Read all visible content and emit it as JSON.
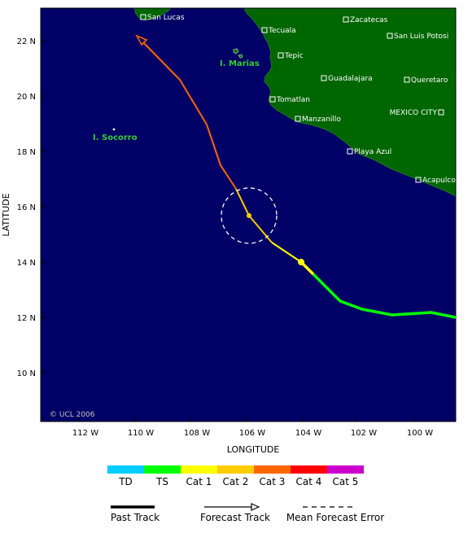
{
  "map": {
    "axes": {
      "xlabel": "LONGITUDE",
      "ylabel": "LATITUDE",
      "lon_ticks": [
        "112 W",
        "110 W",
        "108 W",
        "106 W",
        "104 W",
        "102 W",
        "100 W"
      ],
      "lat_ticks": [
        "22 N",
        "20 N",
        "18 N",
        "16 N",
        "14 N",
        "12 N",
        "10 N"
      ]
    },
    "cities": [
      {
        "name": "San Lucas"
      },
      {
        "name": "Zacatecas"
      },
      {
        "name": "Tecuala"
      },
      {
        "name": "San Luis Potosi"
      },
      {
        "name": "Tepic"
      },
      {
        "name": "Guadalajara"
      },
      {
        "name": "Queretaro"
      },
      {
        "name": "Tomatlan"
      },
      {
        "name": "MEXICO CITY"
      },
      {
        "name": "Manzanillo"
      },
      {
        "name": "Playa Azul"
      },
      {
        "name": "Acapulco"
      }
    ],
    "islands": [
      "I. Marias",
      "I. Socorro"
    ],
    "copyright": "© UCL 2006",
    "colors": {
      "ocean": "#000066",
      "land": "#006600",
      "TD": "#00ccff",
      "TS": "#00ff00",
      "Cat 1": "#ffff00",
      "Cat 2": "#ffcc00",
      "Cat 3": "#ff6600",
      "Cat 4": "#ff0000",
      "Cat 5": "#cc00cc"
    }
  },
  "legend": {
    "categories": [
      "TD",
      "TS",
      "Cat 1",
      "Cat 2",
      "Cat 3",
      "Cat 4",
      "Cat 5"
    ],
    "past_track": "Past Track",
    "forecast_track": "Forecast Track",
    "mean_forecast_error": "Mean Forecast Error"
  }
}
